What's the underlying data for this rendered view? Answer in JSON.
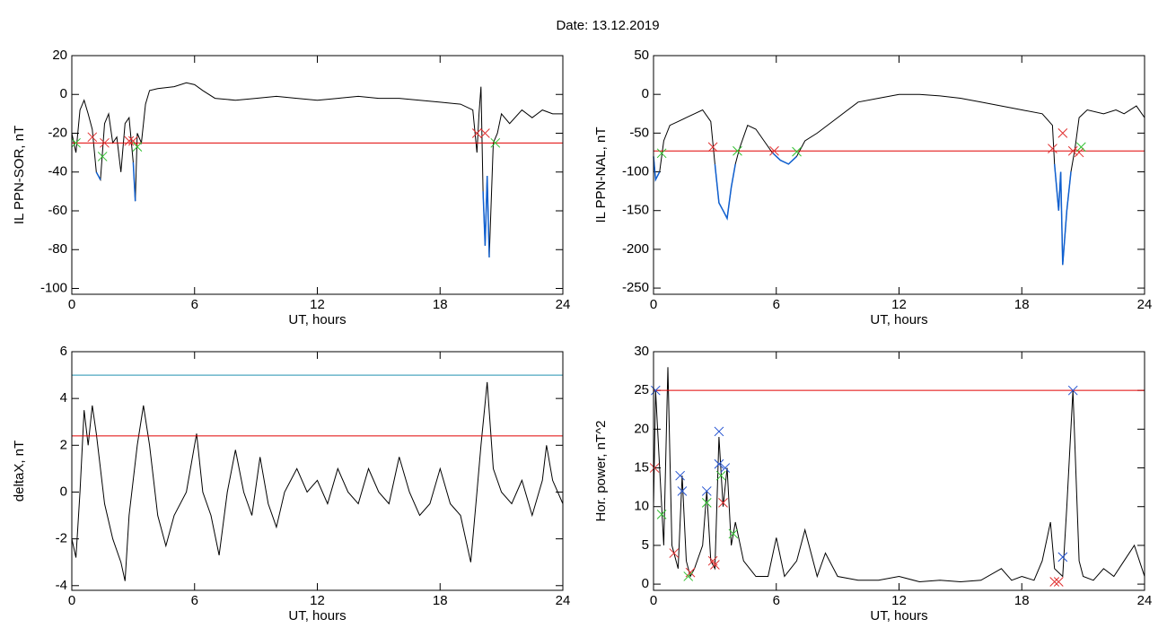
{
  "title": "Date:  13.12.2019",
  "chart_data": [
    {
      "type": "line",
      "ylabel": "IL PPN-SOR, nT",
      "xlabel": "UT, hours",
      "color": "#000000",
      "below_color": "#1060d0",
      "xlim": [
        0,
        24
      ],
      "xticks": [
        0,
        6,
        12,
        18,
        24
      ],
      "ylim": [
        -103,
        20
      ],
      "yticks": [
        20,
        0,
        -20,
        -40,
        -60,
        -80,
        -100
      ],
      "x": [
        0,
        0.2,
        0.4,
        0.6,
        0.8,
        1.0,
        1.2,
        1.4,
        1.6,
        1.8,
        2.0,
        2.2,
        2.4,
        2.6,
        2.8,
        3.0,
        3.1,
        3.2,
        3.4,
        3.6,
        3.8,
        4.2,
        5,
        5.6,
        6,
        6.4,
        7,
        8,
        9,
        10,
        11,
        12,
        13,
        14,
        15,
        16,
        17,
        18,
        19,
        19.6,
        19.8,
        19.9,
        20.0,
        20.1,
        20.2,
        20.3,
        20.4,
        20.6,
        20.8,
        21,
        21.4,
        22,
        22.5,
        23,
        23.5,
        24
      ],
      "values": [
        -20,
        -30,
        -8,
        -3,
        -10,
        -18,
        -40,
        -44,
        -15,
        -10,
        -25,
        -22,
        -40,
        -15,
        -12,
        -35,
        -55,
        -20,
        -25,
        -5,
        2,
        3,
        4,
        6,
        5,
        2,
        -2,
        -3,
        -2,
        -1,
        -2,
        -3,
        -2,
        -1,
        -2,
        -2,
        -3,
        -4,
        -5,
        -8,
        -30,
        -10,
        4,
        -50,
        -78,
        -42,
        -84,
        -25,
        -20,
        -10,
        -15,
        -8,
        -12,
        -8,
        -10,
        -10
      ],
      "hlines": [
        {
          "value": -25,
          "color": "#e00000"
        }
      ],
      "markers": [
        {
          "color": "#e03030",
          "x": [
            1.0,
            1.6,
            2.8,
            3.0,
            19.8,
            20.2
          ],
          "values": [
            -22,
            -25,
            -24,
            -24,
            -20,
            -20
          ]
        },
        {
          "color": "#30c030",
          "x": [
            0.2,
            1.5,
            3.2,
            20.7
          ],
          "values": [
            -25,
            -32,
            -27,
            -25
          ]
        }
      ]
    },
    {
      "type": "line",
      "ylabel": "IL PPN-NAL, nT",
      "xlabel": "UT, hours",
      "color": "#000000",
      "below_color": "#1060d0",
      "xlim": [
        0,
        24
      ],
      "xticks": [
        0,
        6,
        12,
        18,
        24
      ],
      "ylim": [
        -258,
        50
      ],
      "yticks": [
        50,
        0,
        -50,
        -100,
        -150,
        -200,
        -250
      ],
      "x": [
        0,
        0.1,
        0.3,
        0.5,
        0.8,
        1.2,
        1.6,
        2,
        2.4,
        2.8,
        3.0,
        3.2,
        3.4,
        3.6,
        3.8,
        4.0,
        4.2,
        4.6,
        5,
        5.4,
        5.8,
        6.2,
        6.6,
        7,
        7.4,
        8,
        9,
        10,
        11,
        12,
        13,
        14,
        15,
        16,
        17,
        18,
        19,
        19.5,
        19.6,
        19.8,
        19.9,
        20.0,
        20.2,
        20.4,
        20.6,
        20.8,
        21.2,
        22,
        22.6,
        23,
        23.6,
        24
      ],
      "values": [
        -80,
        -110,
        -100,
        -60,
        -40,
        -35,
        -30,
        -25,
        -20,
        -35,
        -90,
        -140,
        -150,
        -160,
        -120,
        -90,
        -70,
        -40,
        -45,
        -60,
        -75,
        -85,
        -90,
        -80,
        -60,
        -50,
        -30,
        -10,
        -5,
        0,
        0,
        -2,
        -5,
        -10,
        -15,
        -20,
        -25,
        -40,
        -90,
        -150,
        -100,
        -220,
        -150,
        -100,
        -70,
        -30,
        -20,
        -25,
        -20,
        -25,
        -15,
        -30
      ],
      "hlines": [
        {
          "value": -73,
          "color": "#e00000"
        }
      ],
      "markers": [
        {
          "color": "#e03030",
          "x": [
            2.9,
            5.9,
            19.5,
            20,
            20.5,
            20.8
          ],
          "values": [
            -68,
            -73,
            -70,
            -50,
            -73,
            -75
          ]
        },
        {
          "color": "#30c030",
          "x": [
            0.4,
            4.1,
            7.0,
            20.9
          ],
          "values": [
            -76,
            -73,
            -74,
            -68
          ]
        }
      ]
    },
    {
      "type": "line",
      "ylabel": "deltaX, nT",
      "xlabel": "UT, hours",
      "color": "#000000",
      "xlim": [
        0,
        24
      ],
      "xticks": [
        0,
        6,
        12,
        18,
        24
      ],
      "ylim": [
        -4.2,
        6
      ],
      "yticks": [
        6,
        4,
        2,
        0,
        -2,
        -4
      ],
      "x": [
        0,
        0.2,
        0.4,
        0.6,
        0.8,
        1.0,
        1.2,
        1.6,
        2.0,
        2.4,
        2.6,
        2.8,
        3.2,
        3.5,
        3.8,
        4.2,
        4.6,
        5,
        5.6,
        6.1,
        6.4,
        6.8,
        7.2,
        7.6,
        8,
        8.4,
        8.8,
        9.2,
        9.6,
        10,
        10.4,
        11,
        11.5,
        12,
        12.5,
        13,
        13.5,
        14,
        14.5,
        15,
        15.5,
        16,
        16.5,
        17,
        17.5,
        18,
        18.5,
        19,
        19.5,
        19.8,
        20,
        20.3,
        20.6,
        21,
        21.5,
        22,
        22.5,
        23,
        23.2,
        23.5,
        24
      ],
      "values": [
        -2,
        -2.8,
        0,
        3.5,
        2,
        3.7,
        2.5,
        -0.5,
        -2,
        -3,
        -3.8,
        -1,
        2,
        3.7,
        2,
        -1,
        -2.3,
        -1,
        0,
        2.5,
        0,
        -1,
        -2.7,
        0,
        1.8,
        0,
        -1,
        1.5,
        -0.5,
        -1.5,
        0,
        1,
        0,
        0.5,
        -0.5,
        1,
        0,
        -0.5,
        1,
        0,
        -0.5,
        1.5,
        0,
        -1,
        -0.5,
        1,
        -0.5,
        -1,
        -3,
        0,
        2,
        4.7,
        1,
        0,
        -0.5,
        0.5,
        -1,
        0.5,
        2,
        0.5,
        -0.5
      ],
      "hlines": [
        {
          "value": 5,
          "color": "#2090b0"
        },
        {
          "value": 2.4,
          "color": "#e00000"
        }
      ],
      "markers": []
    },
    {
      "type": "line",
      "ylabel": "Hor. power, nT^2",
      "xlabel": "UT, hours",
      "color": "#000000",
      "xlim": [
        0,
        24
      ],
      "xticks": [
        0,
        6,
        12,
        18,
        24
      ],
      "ylim": [
        -0.8,
        30
      ],
      "yticks": [
        30,
        25,
        20,
        15,
        10,
        5,
        0
      ],
      "x": [
        0,
        0.1,
        0.3,
        0.5,
        0.7,
        0.9,
        1.2,
        1.4,
        1.6,
        1.8,
        2.0,
        2.4,
        2.6,
        2.8,
        3.0,
        3.2,
        3.4,
        3.6,
        3.8,
        4.0,
        4.4,
        5,
        5.6,
        6.0,
        6.4,
        7,
        7.4,
        8,
        8.4,
        9,
        10,
        11,
        12,
        13,
        14,
        15,
        16,
        17,
        17.5,
        18,
        18.6,
        19,
        19.4,
        19.6,
        20,
        20.2,
        20.5,
        20.8,
        21,
        21.5,
        22,
        22.5,
        23,
        23.5,
        24
      ],
      "values": [
        10,
        25,
        15,
        5,
        28,
        5,
        2,
        14,
        3,
        1,
        2,
        5,
        12,
        3,
        2,
        19,
        10,
        15,
        5,
        8,
        3,
        1,
        1,
        6,
        1,
        3,
        7,
        1,
        4,
        1,
        0.5,
        0.5,
        1,
        0.3,
        0.5,
        0.3,
        0.5,
        2,
        0.5,
        1,
        0.5,
        3,
        8,
        2,
        1,
        10,
        25,
        3,
        1,
        0.5,
        2,
        1,
        3,
        5,
        1
      ],
      "hlines": [
        {
          "value": 25,
          "color": "#e00000"
        }
      ],
      "markers": [
        {
          "color": "#2050d0",
          "x": [
            0.1,
            1.3,
            1.4,
            2.6,
            3.2,
            3.2,
            3.5,
            20.5,
            20.0
          ],
          "values": [
            25,
            14,
            12,
            12,
            19.7,
            15.5,
            15,
            25,
            3.5
          ]
        },
        {
          "color": "#e03030",
          "x": [
            0.05,
            1.0,
            1.8,
            2.9,
            3.0,
            3.4,
            19.6,
            19.8
          ],
          "values": [
            15,
            4,
            1.5,
            3,
            2.5,
            10.5,
            0.3,
            0.3
          ]
        },
        {
          "color": "#30c030",
          "x": [
            0.4,
            1.7,
            2.6,
            3.3,
            3.9
          ],
          "values": [
            9,
            1,
            10.5,
            14,
            6.5
          ]
        }
      ]
    }
  ]
}
